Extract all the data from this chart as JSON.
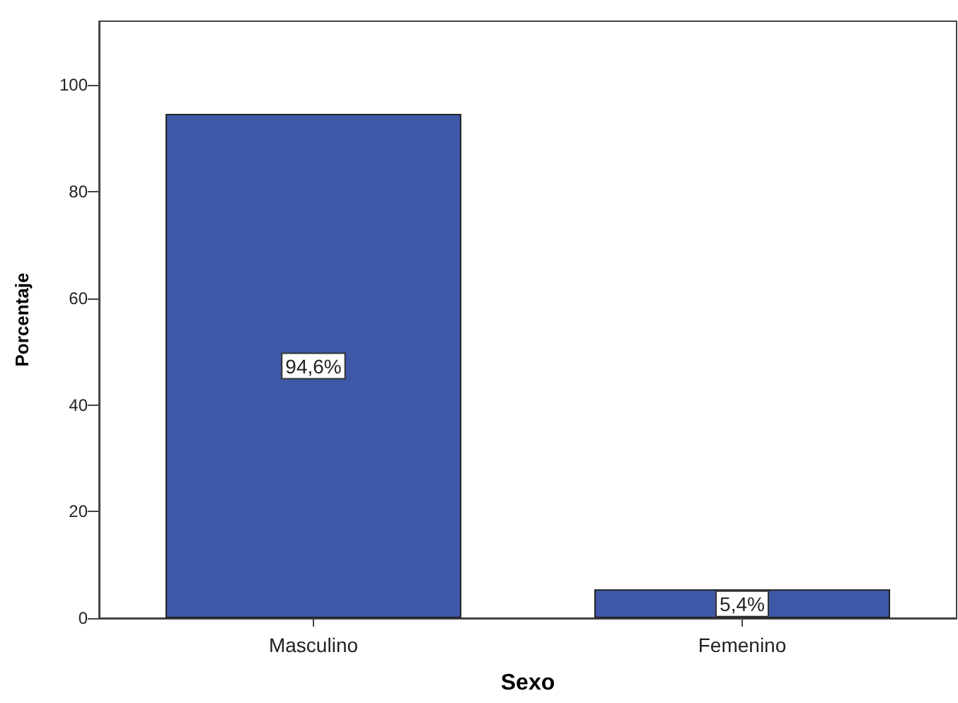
{
  "chart_data": {
    "type": "bar",
    "xlabel": "Sexo",
    "ylabel": "Porcentaje",
    "categories": [
      "Masculino",
      "Femenino"
    ],
    "values": [
      94.6,
      5.4
    ],
    "color": "#3f59a9",
    "value_labels": [
      "94,6%",
      "5,4%"
    ],
    "ylim": [
      0,
      112
    ],
    "yticks": [
      0,
      20,
      40,
      60,
      80,
      100
    ],
    "grid": false
  }
}
